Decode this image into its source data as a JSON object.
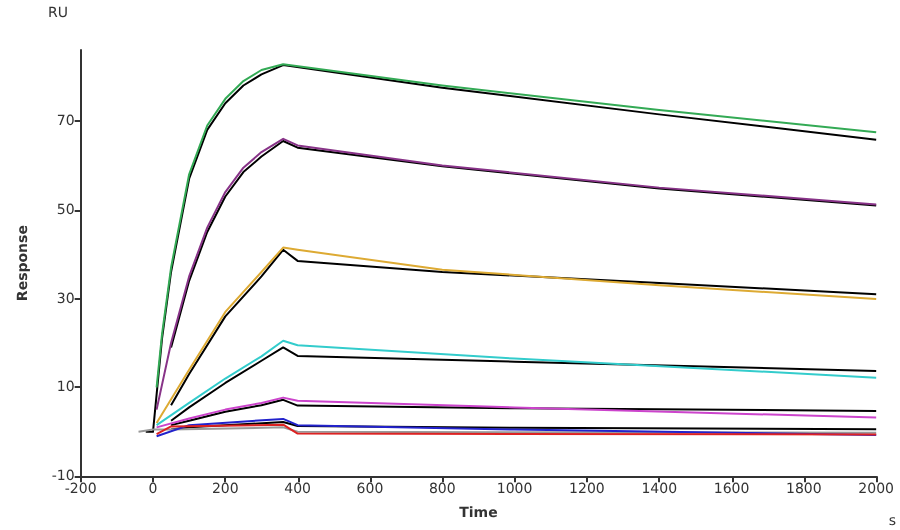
{
  "chart_data": {
    "type": "line",
    "xlabel": "Time",
    "ylabel": "Response",
    "annotations": [
      "RU",
      "s"
    ],
    "xlim": [
      -200,
      2000
    ],
    "xticks": [
      -200,
      0,
      200,
      400,
      600,
      800,
      1000,
      1200,
      1400,
      1600,
      1800,
      2000
    ],
    "ylim": [
      -10,
      86
    ],
    "yticks": [
      -10,
      10,
      30,
      50,
      70
    ],
    "grid": false,
    "marker": "none",
    "line_style": "solid",
    "series": [
      {
        "color": "#000000",
        "x": [
          -20,
          0,
          25,
          50,
          100,
          150,
          200,
          250,
          300,
          360,
          800,
          1400,
          2000
        ],
        "values": [
          0,
          0,
          21,
          36,
          57,
          68,
          74,
          78,
          80.5,
          82.6,
          77.5,
          71.5,
          65.8
        ]
      },
      {
        "color": "#000000",
        "x": [
          50,
          100,
          150,
          200,
          250,
          300,
          360,
          400,
          800,
          1400,
          2000
        ],
        "values": [
          19,
          34,
          45,
          53,
          58.5,
          62,
          65.5,
          64,
          59.8,
          54.8,
          51
        ]
      },
      {
        "color": "#000000",
        "x": [
          50,
          100,
          200,
          300,
          360,
          400,
          800,
          1400,
          2000
        ],
        "values": [
          6,
          13,
          26,
          35,
          41,
          38.5,
          36,
          33.5,
          31
        ]
      },
      {
        "color": "#000000",
        "x": [
          50,
          100,
          200,
          300,
          360,
          400,
          1000,
          2000
        ],
        "values": [
          2.5,
          5.5,
          11,
          16,
          19,
          17.1,
          15.8,
          13.7
        ]
      },
      {
        "color": "#000000",
        "x": [
          50,
          100,
          200,
          300,
          360,
          400,
          1000,
          2000
        ],
        "values": [
          1.5,
          2.5,
          4.5,
          6,
          7.2,
          5.9,
          5.3,
          4.7
        ]
      },
      {
        "color": "#000000",
        "x": [
          50,
          100,
          360,
          400,
          1000,
          2000
        ],
        "values": [
          0.5,
          1,
          2.2,
          1.3,
          0.9,
          0.6
        ]
      },
      {
        "color": "#999999",
        "x": [
          -40,
          0,
          50,
          360,
          400,
          1000,
          2000
        ],
        "values": [
          0,
          0.5,
          0.5,
          1,
          0,
          -0.1,
          -0.2
        ]
      },
      {
        "color": "#33aa55",
        "x": [
          10,
          25,
          50,
          100,
          150,
          200,
          250,
          300,
          360,
          800,
          1400,
          2000
        ],
        "values": [
          10,
          22,
          37,
          58,
          69,
          75,
          79,
          81.5,
          82.8,
          78,
          72.5,
          67.5
        ]
      },
      {
        "color": "#883388",
        "x": [
          10,
          50,
          100,
          150,
          200,
          250,
          300,
          360,
          400,
          800,
          1400,
          2000
        ],
        "values": [
          5,
          20,
          35,
          46,
          54,
          59.5,
          63,
          66,
          64.5,
          60,
          55,
          51.2
        ]
      },
      {
        "color": "#ddaa33",
        "x": [
          10,
          100,
          200,
          300,
          360,
          400,
          800,
          1400,
          2000
        ],
        "values": [
          2,
          14,
          27,
          36,
          41.5,
          41,
          36.5,
          33,
          29.9
        ]
      },
      {
        "color": "#33cccc",
        "x": [
          10,
          100,
          200,
          300,
          360,
          400,
          1000,
          2000
        ],
        "values": [
          1.5,
          6.5,
          12,
          17,
          20.5,
          19.5,
          16.5,
          12.2
        ]
      },
      {
        "color": "#cc44cc",
        "x": [
          10,
          100,
          200,
          300,
          360,
          400,
          1000,
          2000
        ],
        "values": [
          1,
          3,
          5,
          6.5,
          7.7,
          7,
          5.5,
          3.2
        ]
      },
      {
        "color": "#2222cc",
        "x": [
          10,
          100,
          360,
          400,
          1000,
          2000
        ],
        "values": [
          -1,
          1.5,
          2.9,
          1.5,
          0.5,
          -0.7
        ]
      },
      {
        "color": "#dd2222",
        "x": [
          10,
          50,
          360,
          400,
          1000,
          2000
        ],
        "values": [
          -0.5,
          1.2,
          1.6,
          -0.4,
          -0.5,
          -0.6
        ]
      }
    ]
  }
}
